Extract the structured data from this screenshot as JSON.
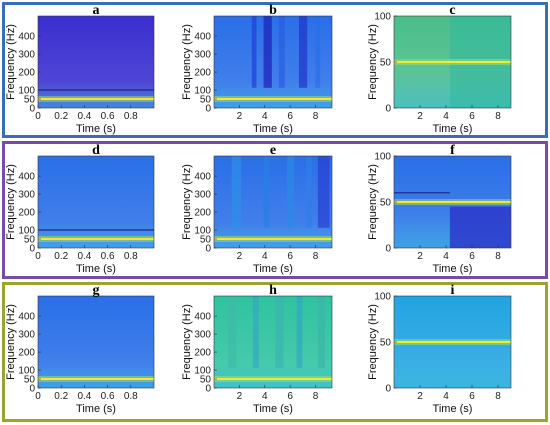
{
  "frame_colors": [
    "#3a6db5",
    "#7b4aa3",
    "#9aa52c"
  ],
  "colors": {
    "dark_blue": "#3a2fd0",
    "mid_blue": "#2a6fe8",
    "cyan": "#22a4e0",
    "teal": "#2fc3a0",
    "green_teal": "#4bbd8a",
    "yellow": "#f5e82e"
  },
  "chart_data": [
    {
      "id": "a",
      "type": "heatmap",
      "title": "a",
      "xlabel": "Time (s)",
      "ylabel": "Frequency (Hz)",
      "xlim": [
        0,
        1
      ],
      "ylim": [
        0,
        512
      ],
      "xticks": [
        0,
        0.2,
        0.4,
        0.6,
        0.8
      ],
      "yticks": [
        0,
        50,
        100,
        200,
        300,
        400
      ],
      "background": "dark_blue",
      "bright_lines_hz": [
        50
      ],
      "dark_lines_hz": [
        100
      ]
    },
    {
      "id": "b",
      "type": "heatmap",
      "title": "b",
      "xlabel": "Time (s)",
      "ylabel": "Frequency (Hz)",
      "xlim": [
        0,
        9.3
      ],
      "ylim": [
        0,
        512
      ],
      "xticks": [
        2,
        4,
        6,
        8
      ],
      "yticks": [
        0,
        50,
        100,
        200,
        300,
        400
      ],
      "background": "mid_blue",
      "bright_lines_hz": [
        50
      ],
      "dark_lines_hz": []
    },
    {
      "id": "c",
      "type": "heatmap",
      "title": "c",
      "xlabel": "Time (s)",
      "ylabel": "Frequency (Hz)",
      "xlim": [
        0,
        9
      ],
      "ylim": [
        0,
        100
      ],
      "xticks": [
        2,
        4,
        6,
        8
      ],
      "yticks": [
        0,
        50,
        100
      ],
      "background": "green_teal",
      "bright_lines_hz": [
        50
      ],
      "dark_lines_hz": []
    },
    {
      "id": "d",
      "type": "heatmap",
      "title": "d",
      "xlabel": "Time (s)",
      "ylabel": "Frequency (Hz)",
      "xlim": [
        0,
        1
      ],
      "ylim": [
        0,
        512
      ],
      "xticks": [
        0,
        0.2,
        0.4,
        0.6,
        0.8
      ],
      "yticks": [
        0,
        50,
        100,
        200,
        300,
        400
      ],
      "background": "mid_blue",
      "bright_lines_hz": [
        50
      ],
      "dark_lines_hz": [
        100
      ]
    },
    {
      "id": "e",
      "type": "heatmap",
      "title": "e",
      "xlabel": "Time (s)",
      "ylabel": "Frequency (Hz)",
      "xlim": [
        0,
        9.3
      ],
      "ylim": [
        0,
        512
      ],
      "xticks": [
        2,
        4,
        6,
        8
      ],
      "yticks": [
        0,
        50,
        100,
        200,
        300,
        400
      ],
      "background": "mid_blue",
      "bright_lines_hz": [
        50
      ],
      "dark_lines_hz": []
    },
    {
      "id": "f",
      "type": "heatmap",
      "title": "f",
      "xlabel": "Time (s)",
      "ylabel": "Frequency (Hz)",
      "xlim": [
        0,
        9
      ],
      "ylim": [
        0,
        100
      ],
      "xticks": [
        2,
        4,
        6,
        8
      ],
      "yticks": [
        0,
        50,
        100
      ],
      "background": "mid_blue",
      "bright_lines_hz": [
        50
      ],
      "dark_lines_hz": [
        60
      ]
    },
    {
      "id": "g",
      "type": "heatmap",
      "title": "g",
      "xlabel": "Time (s)",
      "ylabel": "Frequency (Hz)",
      "xlim": [
        0,
        1
      ],
      "ylim": [
        0,
        512
      ],
      "xticks": [
        0,
        0.2,
        0.4,
        0.6,
        0.8
      ],
      "yticks": [
        0,
        50,
        100,
        200,
        300,
        400
      ],
      "background": "mid_blue",
      "bright_lines_hz": [
        50
      ],
      "dark_lines_hz": []
    },
    {
      "id": "h",
      "type": "heatmap",
      "title": "h",
      "xlabel": "Time (s)",
      "ylabel": "Frequency (Hz)",
      "xlim": [
        0,
        9.3
      ],
      "ylim": [
        0,
        512
      ],
      "xticks": [
        2,
        4,
        6,
        8
      ],
      "yticks": [
        0,
        50,
        100,
        200,
        300,
        400
      ],
      "background": "teal",
      "bright_lines_hz": [
        50
      ],
      "dark_lines_hz": []
    },
    {
      "id": "i",
      "type": "heatmap",
      "title": "i",
      "xlabel": "Time (s)",
      "ylabel": "Frequency (Hz)",
      "xlim": [
        0,
        9
      ],
      "ylim": [
        0,
        100
      ],
      "xticks": [
        2,
        4,
        6,
        8
      ],
      "yticks": [
        0,
        50,
        100
      ],
      "background": "cyan",
      "bright_lines_hz": [
        50
      ],
      "dark_lines_hz": []
    }
  ]
}
